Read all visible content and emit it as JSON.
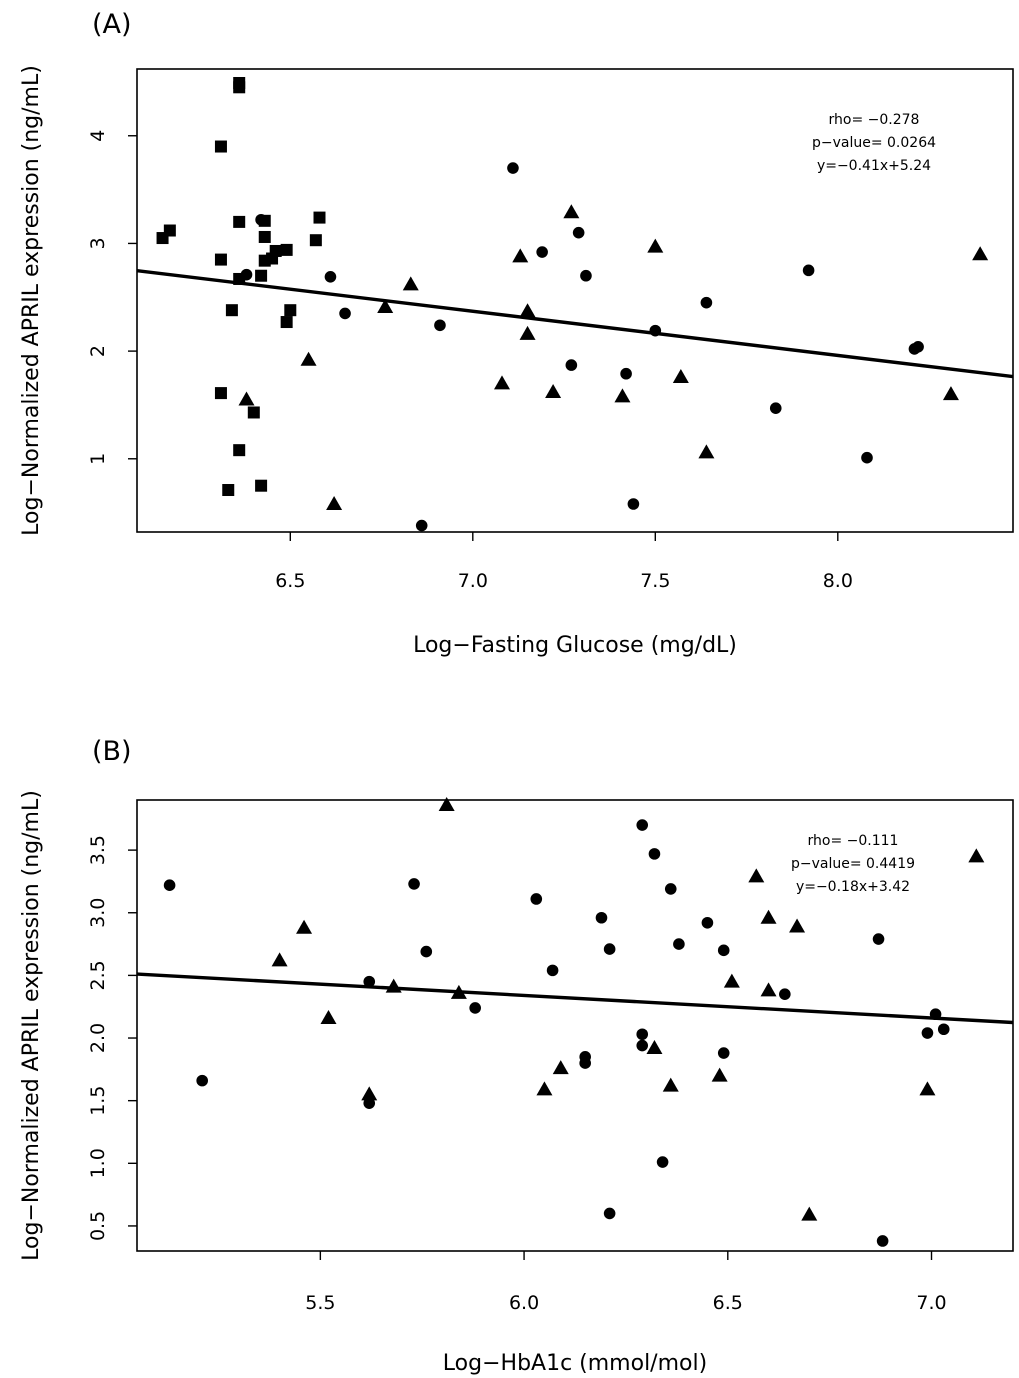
{
  "chart_data": [
    {
      "type": "scatter",
      "panel_label": "(A)",
      "xlabel": "Log−Fasting Glucose (mg/dL)",
      "ylabel": "Log−Normalized APRIL expression (ng/mL)",
      "xlim": [
        6.08,
        8.48
      ],
      "ylim": [
        0.32,
        4.62
      ],
      "xticks": [
        6.5,
        7.0,
        7.5,
        8.0
      ],
      "xtick_labels": [
        "6.5",
        "7.0",
        "7.5",
        "8.0"
      ],
      "yticks": [
        1,
        2,
        3,
        4
      ],
      "ytick_labels": [
        "1",
        "2",
        "3",
        "4"
      ],
      "grid": false,
      "legend": "none",
      "annotations": [
        "rho=  −0.278",
        "p−value=  0.0264",
        "y=−0.41x+5.24"
      ],
      "fit_line": {
        "slope": -0.41,
        "intercept": 5.24
      },
      "series": [
        {
          "marker": "square",
          "points": [
            [
              6.36,
              4.49
            ],
            [
              6.36,
              4.45
            ],
            [
              6.31,
              3.9
            ],
            [
              6.58,
              3.24
            ],
            [
              6.36,
              3.2
            ],
            [
              6.43,
              3.21
            ],
            [
              6.17,
              3.12
            ],
            [
              6.15,
              3.05
            ],
            [
              6.43,
              3.06
            ],
            [
              6.57,
              3.03
            ],
            [
              6.46,
              2.93
            ],
            [
              6.49,
              2.94
            ],
            [
              6.45,
              2.86
            ],
            [
              6.31,
              2.85
            ],
            [
              6.43,
              2.84
            ],
            [
              6.36,
              2.67
            ],
            [
              6.42,
              2.7
            ],
            [
              6.34,
              2.38
            ],
            [
              6.5,
              2.38
            ],
            [
              6.49,
              2.27
            ],
            [
              6.31,
              1.61
            ],
            [
              6.4,
              1.43
            ],
            [
              6.36,
              1.08
            ],
            [
              6.42,
              0.75
            ],
            [
              6.33,
              0.71
            ]
          ]
        },
        {
          "marker": "circle",
          "points": [
            [
              6.42,
              3.22
            ],
            [
              6.38,
              2.71
            ],
            [
              6.61,
              2.69
            ],
            [
              6.65,
              2.35
            ],
            [
              6.91,
              2.24
            ],
            [
              6.86,
              0.38
            ],
            [
              7.11,
              3.7
            ],
            [
              7.19,
              2.92
            ],
            [
              7.29,
              3.1
            ],
            [
              7.31,
              2.7
            ],
            [
              7.27,
              1.87
            ],
            [
              7.42,
              1.79
            ],
            [
              7.44,
              0.58
            ],
            [
              7.5,
              2.19
            ],
            [
              7.64,
              2.45
            ],
            [
              7.83,
              1.47
            ],
            [
              7.92,
              2.75
            ],
            [
              8.08,
              1.01
            ],
            [
              8.21,
              2.02
            ],
            [
              8.22,
              2.04
            ]
          ]
        },
        {
          "marker": "triangle",
          "points": [
            [
              6.38,
              1.55
            ],
            [
              6.55,
              1.92
            ],
            [
              6.62,
              0.58
            ],
            [
              6.76,
              2.41
            ],
            [
              6.83,
              2.62
            ],
            [
              7.08,
              1.7
            ],
            [
              7.13,
              2.88
            ],
            [
              7.15,
              2.37
            ],
            [
              7.15,
              2.16
            ],
            [
              7.22,
              1.62
            ],
            [
              7.27,
              3.29
            ],
            [
              7.41,
              1.58
            ],
            [
              7.5,
              2.97
            ],
            [
              7.57,
              1.76
            ],
            [
              7.64,
              1.06
            ],
            [
              8.31,
              1.6
            ],
            [
              8.39,
              2.9
            ]
          ]
        }
      ]
    },
    {
      "type": "scatter",
      "panel_label": "(B)",
      "xlabel": "Log−HbA1c (mmol/mol)",
      "ylabel": "Log−Normalized APRIL expression (ng/mL)",
      "xlim": [
        5.05,
        7.2
      ],
      "ylim": [
        0.3,
        3.9
      ],
      "xticks": [
        5.5,
        6.0,
        6.5,
        7.0
      ],
      "xtick_labels": [
        "5.5",
        "6.0",
        "6.5",
        "7.0"
      ],
      "yticks": [
        0.5,
        1.0,
        1.5,
        2.0,
        2.5,
        3.0,
        3.5
      ],
      "ytick_labels": [
        "0.5",
        "1.0",
        "1.5",
        "2.0",
        "2.5",
        "3.0",
        "3.5"
      ],
      "grid": false,
      "legend": "none",
      "annotations": [
        "rho=  −0.111",
        "p−value=  0.4419",
        "y=−0.18x+3.42"
      ],
      "fit_line": {
        "slope": -0.18,
        "intercept": 3.42
      },
      "series": [
        {
          "marker": "circle",
          "points": [
            [
              5.13,
              3.22
            ],
            [
              5.21,
              1.66
            ],
            [
              5.62,
              2.45
            ],
            [
              5.62,
              1.48
            ],
            [
              5.73,
              3.23
            ],
            [
              5.76,
              2.69
            ],
            [
              5.88,
              2.24
            ],
            [
              6.03,
              3.11
            ],
            [
              6.07,
              2.54
            ],
            [
              6.15,
              1.85
            ],
            [
              6.15,
              1.8
            ],
            [
              6.19,
              2.96
            ],
            [
              6.21,
              2.71
            ],
            [
              6.21,
              0.6
            ],
            [
              6.29,
              3.7
            ],
            [
              6.29,
              2.03
            ],
            [
              6.29,
              1.94
            ],
            [
              6.32,
              3.47
            ],
            [
              6.34,
              1.01
            ],
            [
              6.36,
              3.19
            ],
            [
              6.38,
              2.75
            ],
            [
              6.45,
              2.92
            ],
            [
              6.49,
              2.7
            ],
            [
              6.49,
              1.88
            ],
            [
              6.64,
              2.35
            ],
            [
              6.87,
              2.79
            ],
            [
              6.88,
              0.38
            ],
            [
              6.99,
              2.04
            ],
            [
              7.01,
              2.19
            ],
            [
              7.03,
              2.07
            ]
          ]
        },
        {
          "marker": "triangle",
          "points": [
            [
              5.4,
              2.62
            ],
            [
              5.46,
              2.88
            ],
            [
              5.52,
              2.16
            ],
            [
              5.62,
              1.55
            ],
            [
              5.68,
              2.41
            ],
            [
              5.81,
              3.86
            ],
            [
              5.84,
              2.36
            ],
            [
              6.05,
              1.59
            ],
            [
              6.09,
              1.76
            ],
            [
              6.32,
              1.92
            ],
            [
              6.36,
              1.62
            ],
            [
              6.48,
              1.7
            ],
            [
              6.51,
              2.45
            ],
            [
              6.57,
              3.29
            ],
            [
              6.6,
              2.96
            ],
            [
              6.6,
              2.38
            ],
            [
              6.67,
              2.89
            ],
            [
              6.7,
              0.59
            ],
            [
              6.99,
              1.59
            ],
            [
              7.11,
              3.45
            ]
          ]
        }
      ]
    }
  ]
}
